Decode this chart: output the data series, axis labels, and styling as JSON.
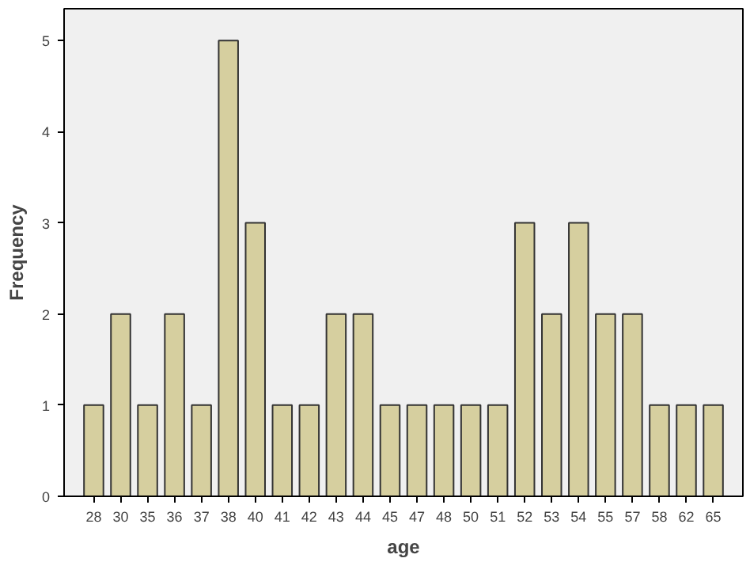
{
  "chart_data": {
    "type": "bar",
    "xlabel": "age",
    "ylabel": "Frequency",
    "categories": [
      "28",
      "30",
      "35",
      "36",
      "37",
      "38",
      "40",
      "41",
      "42",
      "43",
      "44",
      "45",
      "47",
      "48",
      "50",
      "51",
      "52",
      "53",
      "54",
      "55",
      "57",
      "58",
      "62",
      "65"
    ],
    "values": [
      1,
      2,
      1,
      2,
      1,
      5,
      3,
      1,
      1,
      2,
      2,
      1,
      1,
      1,
      1,
      1,
      3,
      2,
      3,
      2,
      2,
      1,
      1,
      1
    ],
    "color": "#d6cf9f",
    "ylim": [
      0,
      5.35
    ],
    "yticks": [
      0,
      1,
      2,
      3,
      4,
      5
    ],
    "grid": false
  }
}
